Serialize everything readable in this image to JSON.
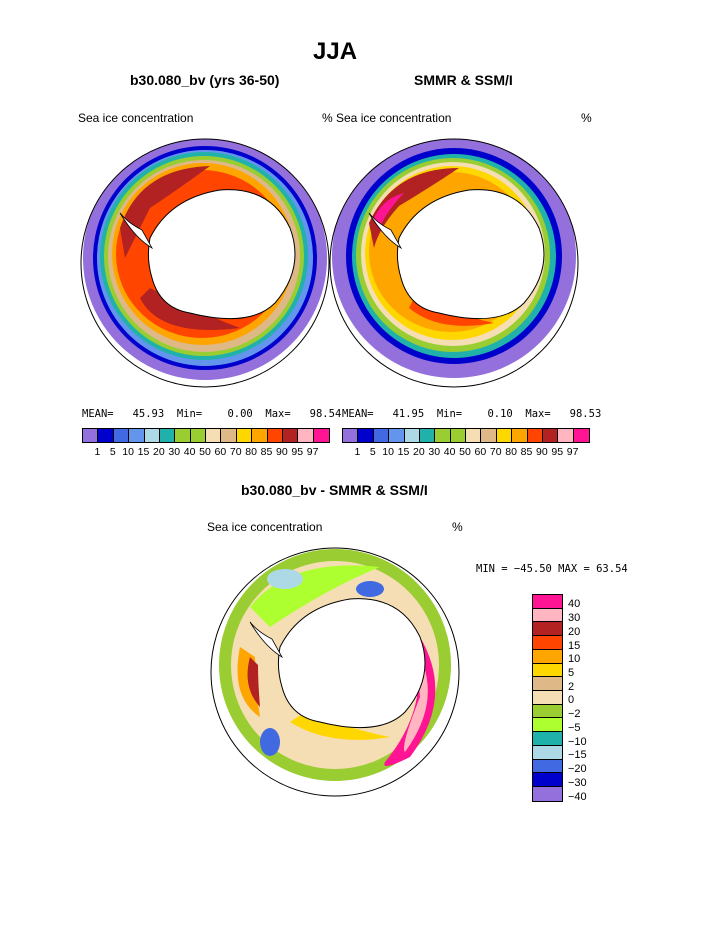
{
  "page_title": "JJA",
  "left_panel": {
    "title": "b30.080_bv (yrs 36-50)",
    "left_label": "Sea ice concentration",
    "stats": {
      "mean_label": "MEAN=",
      "mean": "45.93",
      "min_label": "Min=",
      "min": "0.00",
      "max_label": "Max=",
      "max": "98.54"
    }
  },
  "right_panel": {
    "title": "SMMR & SSM/I",
    "left_label": "% Sea ice concentration",
    "right_label": "%",
    "stats": {
      "mean_label": "MEAN=",
      "mean": "41.95",
      "min_label": "Min=",
      "min": "0.10",
      "max_label": "Max=",
      "max": "98.53"
    }
  },
  "conc_colorbar": {
    "colors": [
      "#9370db",
      "#0000cd",
      "#4169e1",
      "#6495ed",
      "#add8e6",
      "#20b2aa",
      "#9acd32",
      "#9acd32",
      "#f5deb3",
      "#deb887",
      "#ffd700",
      "#ffa500",
      "#ff4500",
      "#b22222",
      "#ffb6c1",
      "#ff1493"
    ],
    "labels": [
      "1",
      "5",
      "10",
      "15",
      "20",
      "30",
      "40",
      "50",
      "60",
      "70",
      "80",
      "85",
      "90",
      "95",
      "97"
    ]
  },
  "diff_panel": {
    "title": "b30.080_bv - SMMR & SSM/I",
    "left_label": "Sea ice concentration",
    "right_label": "%",
    "minmax": "MIN = −45.50  MAX =   63.54"
  },
  "diff_colorbar": {
    "colors": [
      "#ff1493",
      "#ffb6c1",
      "#b22222",
      "#ff4500",
      "#ffa500",
      "#ffd700",
      "#deb887",
      "#f5deb3",
      "#9acd32",
      "#adff2f",
      "#20b2aa",
      "#add8e6",
      "#4169e1",
      "#0000cd",
      "#9370db"
    ],
    "labels": [
      "40",
      "30",
      "20",
      "15",
      "10",
      "5",
      "2",
      "0",
      "−2",
      "−5",
      "−10",
      "−15",
      "−20",
      "−30",
      "−40"
    ]
  }
}
